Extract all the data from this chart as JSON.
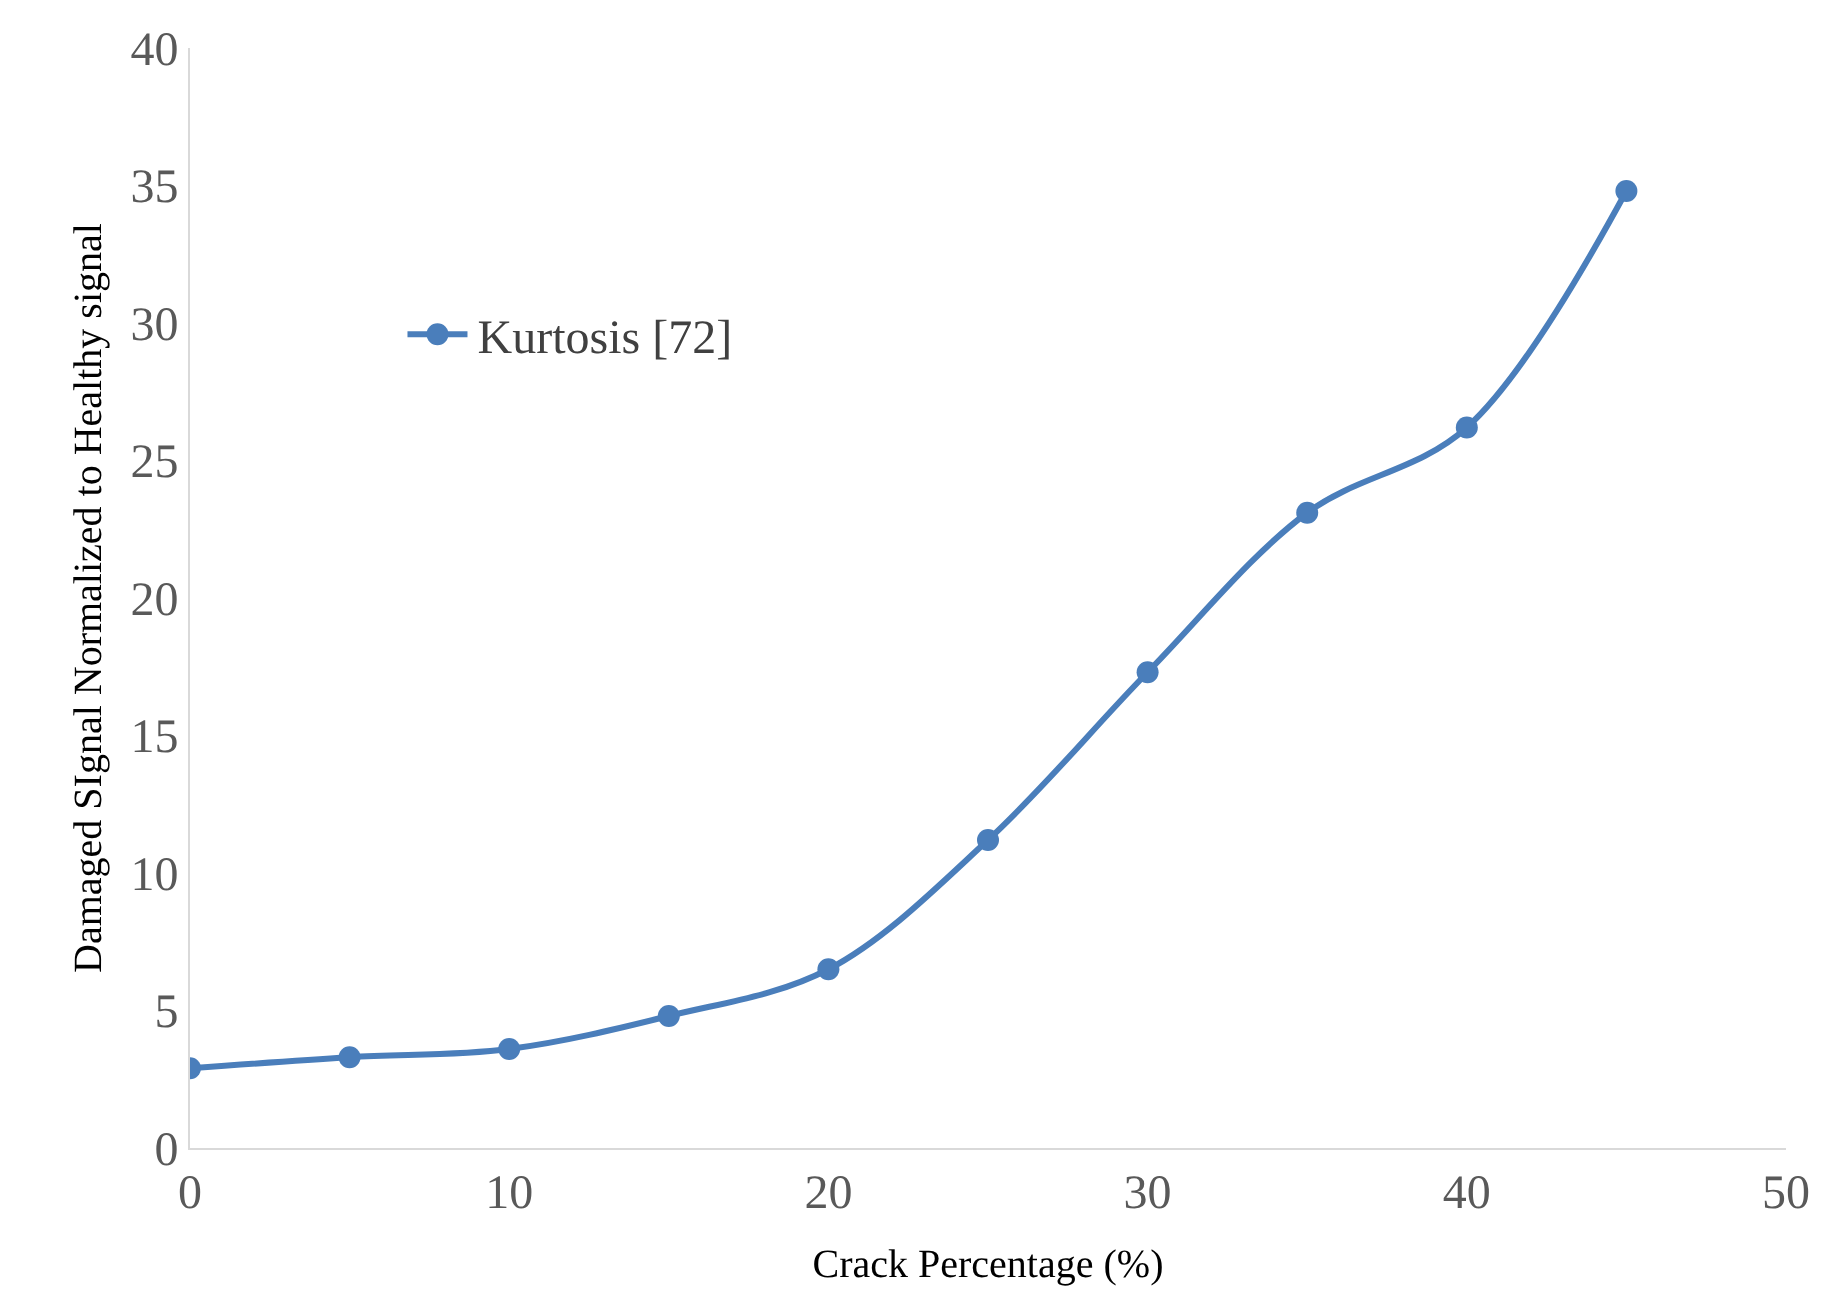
{
  "chart_data": {
    "type": "line",
    "xlabel": "Crack Percentage (%)",
    "ylabel": "Damaged SIgnal Normalized to Healthy signal",
    "x": [
      0,
      5,
      10,
      15,
      20,
      25,
      30,
      35,
      40,
      45
    ],
    "series": [
      {
        "name": "Kurtosis [72]",
        "color": "#4a7ebb",
        "values": [
          2.9,
          3.3,
          3.6,
          4.8,
          6.5,
          11.2,
          17.3,
          23.1,
          26.2,
          34.8
        ]
      }
    ],
    "xlim": [
      0,
      50
    ],
    "xticks": [
      0,
      10,
      20,
      30,
      40,
      50
    ],
    "ylim": [
      0,
      40
    ],
    "yticks": [
      0,
      5,
      10,
      15,
      20,
      25,
      30,
      35,
      40
    ],
    "legend": "top left",
    "marker": "circle",
    "line_style": "solid"
  }
}
